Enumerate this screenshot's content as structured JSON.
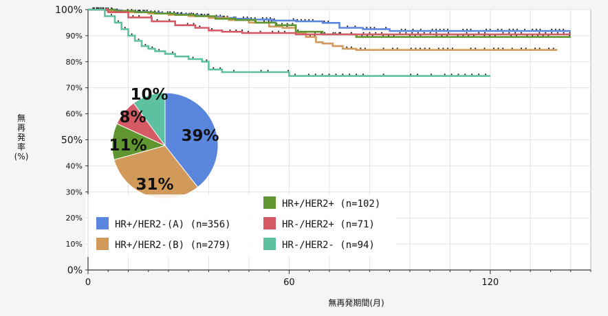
{
  "chart_data": [
    {
      "type": "line",
      "subtype": "kaplan-meier",
      "xlabel": "無再発期間(月)",
      "ylabel": [
        "無",
        "再",
        "発",
        "率",
        "(%)"
      ],
      "xlim": [
        0,
        150
      ],
      "ylim": [
        0,
        100
      ],
      "x_ticks": [
        0,
        60,
        120
      ],
      "y_ticks": [
        {
          "value": 0,
          "label": "0%"
        },
        {
          "value": 10,
          "label": "10%"
        },
        {
          "value": 20,
          "label": "20%"
        },
        {
          "value": 30,
          "label": "30%"
        },
        {
          "value": 40,
          "label": "40%"
        },
        {
          "value": 50,
          "label": "50%"
        },
        {
          "value": 60,
          "label": "60%"
        },
        {
          "value": 70,
          "label": "70%"
        },
        {
          "value": 80,
          "label": "80%"
        },
        {
          "value": 90,
          "label": "90%"
        },
        {
          "value": 100,
          "label": "100%"
        }
      ],
      "grid": true,
      "series": [
        {
          "name": "HR+/HER2-(A) (n=356)",
          "color": "#5b86dd",
          "x": [
            0,
            5,
            10,
            14,
            18,
            22,
            26,
            30,
            33,
            36,
            40,
            44,
            48,
            55,
            62,
            70,
            75,
            82,
            90,
            100,
            110,
            120,
            130,
            140,
            144
          ],
          "y": [
            100,
            99.7,
            99.4,
            99.1,
            98.8,
            98.5,
            98.2,
            97.9,
            97.6,
            97.2,
            96.8,
            96.5,
            96.2,
            95.8,
            95.5,
            94.9,
            93.0,
            92.5,
            91.8,
            91.8,
            91.8,
            91.8,
            91.8,
            91.8,
            91.8
          ]
        },
        {
          "name": "HR+/HER2-(B) (n=279)",
          "color": "#d29a5a",
          "x": [
            0,
            6,
            12,
            18,
            24,
            30,
            36,
            42,
            48,
            54,
            58,
            62,
            65,
            68,
            70,
            73,
            76,
            80,
            90,
            100,
            110,
            120,
            130,
            140
          ],
          "y": [
            100,
            99.5,
            99.0,
            98.5,
            98.0,
            97.5,
            96.8,
            96.0,
            95.0,
            93.5,
            93.0,
            91.0,
            89.5,
            87.5,
            87.0,
            86.0,
            85.0,
            84.5,
            84.5,
            84.5,
            84.5,
            84.5,
            84.5,
            84.5
          ]
        },
        {
          "name": "HR+/HER2+ (n=102)",
          "color": "#5f9630",
          "x": [
            0,
            8,
            14,
            20,
            26,
            32,
            38,
            44,
            50,
            56,
            62,
            70,
            80,
            90,
            100,
            110,
            120,
            130,
            140,
            144
          ],
          "y": [
            100,
            99.5,
            99.0,
            98.5,
            98.0,
            97.5,
            96.5,
            96.0,
            95.0,
            94.0,
            91.5,
            90.5,
            89.5,
            89.5,
            89.5,
            89.5,
            89.5,
            89.5,
            89.5,
            89.5
          ]
        },
        {
          "name": "HR-/HER2+ (n=71)",
          "color": "#d65a66",
          "x": [
            0,
            6,
            12,
            19,
            26,
            32,
            36,
            40,
            46,
            52,
            58,
            62,
            70,
            80,
            90,
            100,
            110,
            120,
            130,
            140,
            144
          ],
          "y": [
            100,
            99.0,
            97.0,
            95.5,
            94.0,
            93.0,
            92.0,
            91.5,
            91.0,
            91.0,
            91.0,
            90.5,
            90.5,
            90.5,
            90.5,
            90.5,
            90.5,
            90.5,
            90.5,
            90.5,
            90.5
          ]
        },
        {
          "name": "HR-/HER2- (n=94)",
          "color": "#5dc0a0",
          "x": [
            0,
            5,
            8,
            10,
            12,
            14,
            16,
            18,
            20,
            23,
            26,
            30,
            34,
            36,
            40,
            48,
            56,
            60,
            70,
            80,
            90,
            100,
            110,
            120
          ],
          "y": [
            100,
            97.5,
            95.0,
            92.5,
            90.0,
            88.0,
            86.0,
            85.0,
            84.0,
            83.0,
            82.0,
            81.0,
            80.0,
            77.0,
            76.0,
            76.0,
            76.0,
            74.5,
            74.5,
            74.5,
            74.5,
            74.5,
            74.5,
            74.5
          ]
        }
      ],
      "legend_columns": [
        [
          "HR+/HER2-(A) (n=356)",
          "HR+/HER2-(B) (n=279)"
        ],
        [
          "HR+/HER2+ (n=102)",
          "HR-/HER2+ (n=71)",
          "HR-/HER2- (n=94)"
        ]
      ]
    },
    {
      "type": "pie",
      "slices": [
        {
          "label": "39%",
          "value": 39,
          "color": "#5b86dd"
        },
        {
          "label": "31%",
          "value": 31,
          "color": "#d29a5a"
        },
        {
          "label": "11%",
          "value": 11,
          "color": "#5f9630"
        },
        {
          "label": "8%",
          "value": 8,
          "color": "#d65a66"
        },
        {
          "label": "10%",
          "value": 10,
          "color": "#5dc0a0"
        }
      ]
    }
  ]
}
